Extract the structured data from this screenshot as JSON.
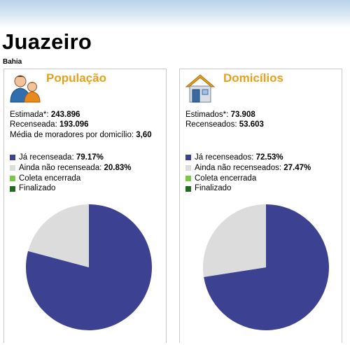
{
  "city": "Juazeiro",
  "state": "Bahia",
  "colors": {
    "title_accent": "#e6a11c",
    "censused": "#3c4291",
    "not_censused": "#dcdcdc",
    "collection_closed": "#7ac943",
    "finalized": "#1e6b1e"
  },
  "populacao": {
    "icon": "people-icon",
    "title": "População",
    "estimated_label": "Estimada*:",
    "estimated_value": "243.896",
    "censused_label": "Recenseada:",
    "censused_value": "193.096",
    "avg_label": "Média de moradores por domicílio:",
    "avg_value": "3,60",
    "legend": [
      {
        "label": "Já recenseada:",
        "value": "79.17%",
        "color": "#3c4291"
      },
      {
        "label": "Ainda não recenseada:",
        "value": "20.83%",
        "color": "#dcdcdc"
      },
      {
        "label": "Coleta encerrada",
        "value": "",
        "color": "#7ac943"
      },
      {
        "label": "Finalizado",
        "value": "",
        "color": "#1e6b1e"
      }
    ]
  },
  "domicilios": {
    "icon": "house-icon",
    "title": "Domicílios",
    "estimated_label": "Estimados*:",
    "estimated_value": "73.908",
    "censused_label": "Recenseados:",
    "censused_value": "53.603",
    "legend": [
      {
        "label": "Já recenseados:",
        "value": "72.53%",
        "color": "#3c4291"
      },
      {
        "label": "Ainda não recenseados:",
        "value": "27.47%",
        "color": "#dcdcdc"
      },
      {
        "label": "Coleta encerrada",
        "value": "",
        "color": "#7ac943"
      },
      {
        "label": "Finalizado",
        "value": "",
        "color": "#1e6b1e"
      }
    ]
  },
  "chart_data": [
    {
      "type": "pie",
      "labels": [
        "Já recenseada",
        "Ainda não recenseada"
      ],
      "values": [
        79.17,
        20.83
      ],
      "colors": [
        "#3c4291",
        "#dcdcdc"
      ]
    },
    {
      "type": "pie",
      "labels": [
        "Já recenseados",
        "Ainda não recenseados"
      ],
      "values": [
        72.53,
        27.47
      ],
      "colors": [
        "#3c4291",
        "#dcdcdc"
      ]
    }
  ]
}
